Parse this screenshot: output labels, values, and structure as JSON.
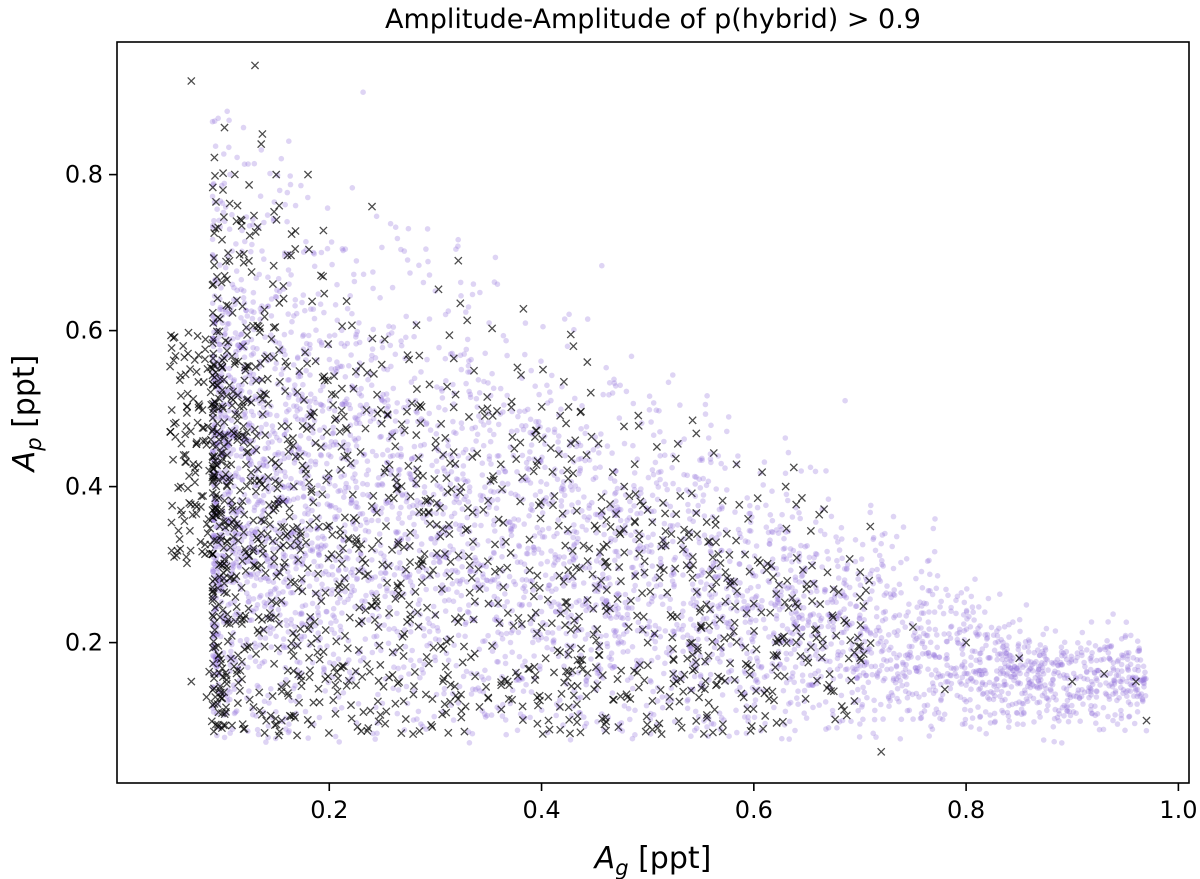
{
  "chart_data": {
    "type": "scatter",
    "title": "Amplitude-Amplitude of p(hybrid) > 0.9",
    "xlabel": {
      "symbol": "A",
      "sub": "g",
      "unit": " [ppt]"
    },
    "ylabel": {
      "symbol": "A",
      "sub": "p",
      "unit": " [ppt]"
    },
    "xlim": [
      0.0,
      1.01
    ],
    "ylim": [
      0.02,
      0.97
    ],
    "xticks": [
      0.2,
      0.4,
      0.6,
      0.8,
      1.0
    ],
    "xtick_labels": [
      "0.2",
      "0.4",
      "0.6",
      "0.8",
      "1.0"
    ],
    "yticks": [
      0.2,
      0.4,
      0.6,
      0.8
    ],
    "ytick_labels": [
      "0.2",
      "0.4",
      "0.6",
      "0.8"
    ],
    "grid": false,
    "series": [
      {
        "marker": "dot",
        "color": "#9370db",
        "opacity": 0.3,
        "density_description": "dense cloud, x 0.09-0.97, y 0.08-0.95, densest near x 0.1-0.35, y 0.2-0.6; upper envelope declines as x increases",
        "x": [
          0.1,
          0.12,
          0.15,
          0.18,
          0.2,
          0.22,
          0.25,
          0.28,
          0.3,
          0.33,
          0.35,
          0.38,
          0.4,
          0.42,
          0.45,
          0.48,
          0.5,
          0.52,
          0.55,
          0.58,
          0.6,
          0.62,
          0.65,
          0.68,
          0.7,
          0.72,
          0.75,
          0.78,
          0.8,
          0.82,
          0.85,
          0.88,
          0.9,
          0.93,
          0.95,
          0.97
        ],
        "y": [
          0.55,
          0.7,
          0.45,
          0.62,
          0.38,
          0.52,
          0.33,
          0.48,
          0.3,
          0.44,
          0.28,
          0.4,
          0.26,
          0.36,
          0.25,
          0.33,
          0.22,
          0.31,
          0.21,
          0.29,
          0.2,
          0.27,
          0.19,
          0.25,
          0.18,
          0.24,
          0.17,
          0.22,
          0.16,
          0.21,
          0.15,
          0.19,
          0.14,
          0.17,
          0.13,
          0.12
        ]
      },
      {
        "marker": "x",
        "color": "#000000",
        "opacity": 0.7,
        "density_description": "x markers overlaid, x 0.05-0.97, y 0.06-0.94, concentrated near x 0.09-0.55",
        "x": [
          0.06,
          0.07,
          0.13,
          0.07,
          0.1,
          0.15,
          0.18,
          0.2,
          0.25,
          0.3,
          0.35,
          0.4,
          0.43,
          0.45,
          0.5,
          0.55,
          0.6,
          0.63,
          0.65,
          0.7,
          0.72,
          0.75,
          0.78,
          0.8,
          0.85,
          0.9,
          0.93,
          0.96,
          0.97
        ],
        "y": [
          0.4,
          0.92,
          0.94,
          0.15,
          0.5,
          0.8,
          0.8,
          0.35,
          0.3,
          0.45,
          0.25,
          0.22,
          0.58,
          0.35,
          0.2,
          0.22,
          0.25,
          0.4,
          0.18,
          0.18,
          0.06,
          0.22,
          0.14,
          0.2,
          0.18,
          0.15,
          0.16,
          0.15,
          0.1
        ]
      }
    ]
  }
}
